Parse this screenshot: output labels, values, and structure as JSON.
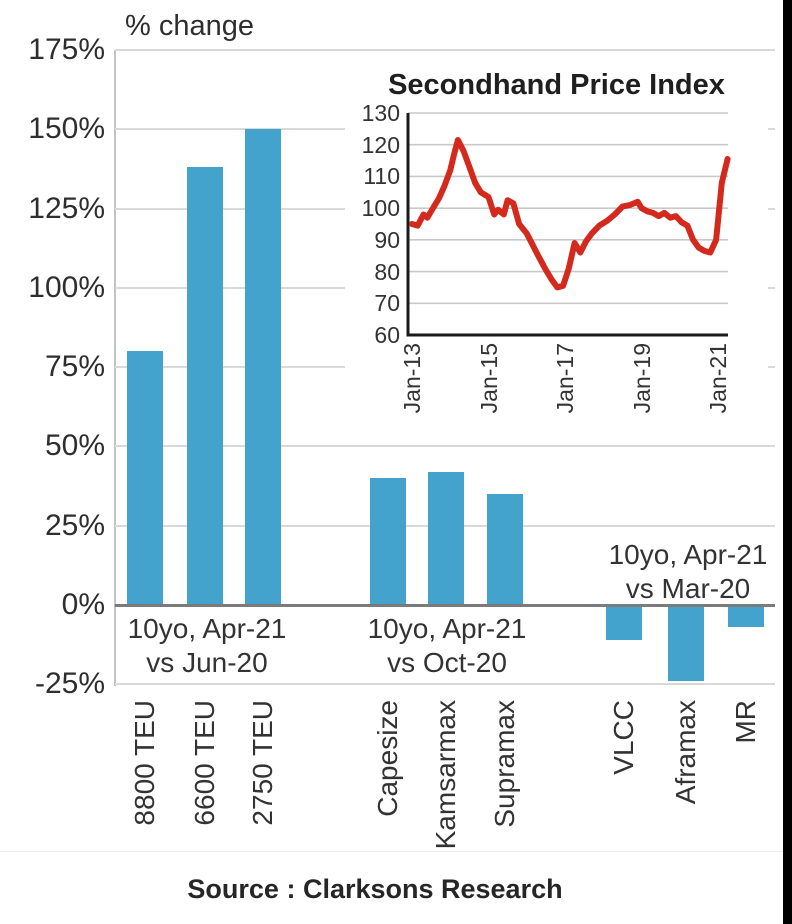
{
  "chart_data": [
    {
      "type": "bar",
      "title": "% change",
      "ylim": [
        -25,
        175
      ],
      "yticks": [
        175,
        150,
        125,
        100,
        75,
        50,
        25,
        0,
        -25
      ],
      "ytick_labels": [
        "175%",
        "150%",
        "125%",
        "100%",
        "75%",
        "50%",
        "25%",
        "0%",
        "-25%"
      ],
      "grid": true,
      "legend": false,
      "bar_color": "#43a3cd",
      "groups": [
        {
          "annotation_lines": [
            "10yo, Apr-21",
            "vs Jun-20"
          ],
          "annotation_side": "below-axis",
          "categories": [
            "8800 TEU",
            "6600 TEU",
            "2750 TEU"
          ],
          "values": [
            80,
            138,
            150
          ]
        },
        {
          "annotation_lines": [
            "10yo, Apr-21",
            "vs Oct-20"
          ],
          "annotation_side": "below-axis",
          "categories": [
            "Capesize",
            "Kamsarmax",
            "Supramax"
          ],
          "values": [
            40,
            42,
            35
          ]
        },
        {
          "annotation_lines": [
            "10yo, Apr-21",
            "vs Mar-20"
          ],
          "annotation_side": "above-axis",
          "categories": [
            "VLCC",
            "Aframax",
            "MR"
          ],
          "values": [
            -11,
            -24,
            -7
          ]
        }
      ]
    },
    {
      "type": "line",
      "title": "Secondhand Price Index",
      "line_color": "#d42a1e",
      "ylim": [
        60,
        130
      ],
      "yticks": [
        130,
        120,
        110,
        100,
        90,
        80,
        70,
        60
      ],
      "ytick_labels": [
        "130",
        "120",
        "110",
        "100",
        "90",
        "80",
        "70",
        "60"
      ],
      "xtick_labels": [
        "Jan-13",
        "Jan-15",
        "Jan-17",
        "Jan-19",
        "Jan-21"
      ],
      "xtick_values": [
        2013,
        2015,
        2017,
        2019,
        2021
      ],
      "xlim": [
        2012.9,
        2021.35
      ],
      "grid": true,
      "series": [
        {
          "name": "Secondhand Price Index",
          "x": [
            2013.0,
            2013.15,
            2013.3,
            2013.4,
            2013.55,
            2013.7,
            2013.85,
            2014.0,
            2014.1,
            2014.2,
            2014.35,
            2014.5,
            2014.65,
            2014.8,
            2015.0,
            2015.15,
            2015.25,
            2015.4,
            2015.5,
            2015.65,
            2015.8,
            2016.0,
            2016.15,
            2016.3,
            2016.5,
            2016.65,
            2016.8,
            2016.95,
            2017.1,
            2017.25,
            2017.4,
            2017.55,
            2017.7,
            2017.9,
            2018.1,
            2018.3,
            2018.5,
            2018.7,
            2018.9,
            2019.0,
            2019.15,
            2019.3,
            2019.45,
            2019.6,
            2019.75,
            2019.9,
            2020.05,
            2020.2,
            2020.35,
            2020.5,
            2020.65,
            2020.8,
            2020.95,
            2021.1,
            2021.25
          ],
          "y": [
            95,
            94.5,
            98,
            97,
            100,
            103,
            107,
            112,
            117,
            121.5,
            118,
            113,
            108,
            105,
            103.5,
            98,
            99.5,
            98,
            102.5,
            101.5,
            95,
            92,
            88.5,
            85,
            80.5,
            77.5,
            75,
            75.5,
            81,
            89,
            86,
            89.5,
            92,
            94.5,
            96,
            98,
            100.5,
            101,
            102,
            100,
            99,
            98.5,
            97.5,
            98.5,
            97,
            97.5,
            95.5,
            94.5,
            90,
            87.5,
            86.5,
            86,
            90,
            108,
            115.5
          ]
        }
      ]
    }
  ],
  "source_note": "Source : Clarksons Research"
}
